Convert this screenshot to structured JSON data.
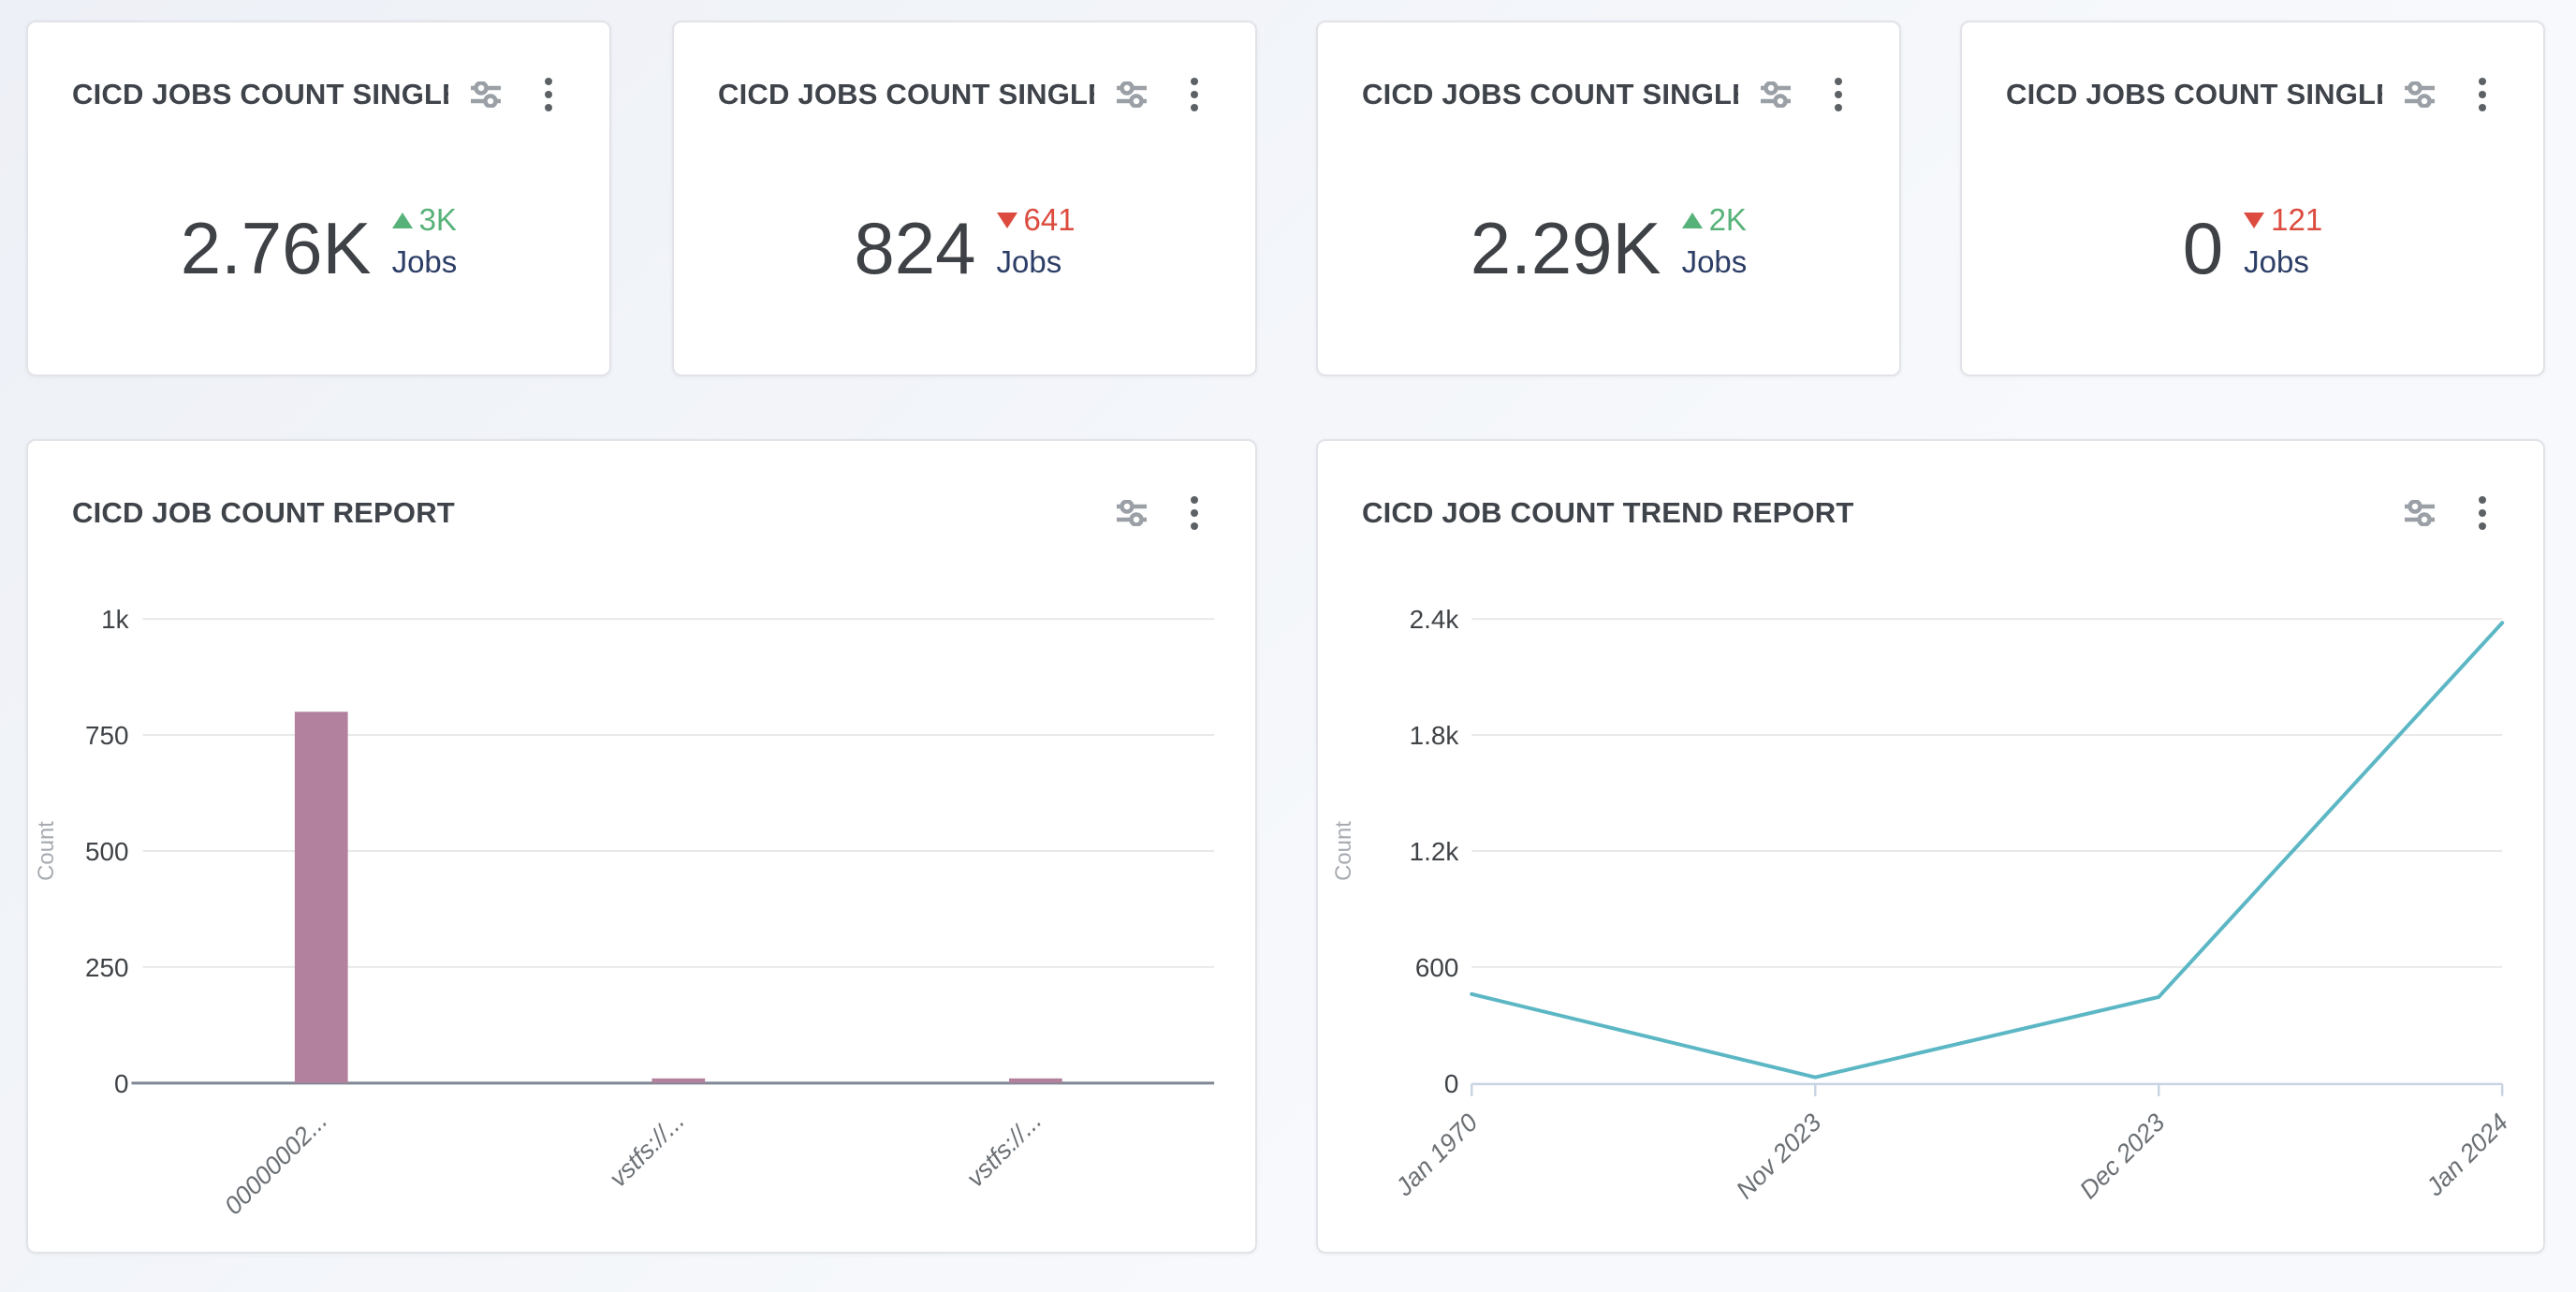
{
  "kpi_cards": [
    {
      "title": "CICD JOBS COUNT SINGLE S...",
      "value": "2.76K",
      "delta": "3K",
      "delta_direction": "up",
      "unit": "Jobs"
    },
    {
      "title": "CICD JOBS COUNT SINGLE S...",
      "value": "824",
      "delta": "641",
      "delta_direction": "down",
      "unit": "Jobs"
    },
    {
      "title": "CICD JOBS COUNT SINGLE S...",
      "value": "2.29K",
      "delta": "2K",
      "delta_direction": "up",
      "unit": "Jobs"
    },
    {
      "title": "CICD JOBS COUNT SINGLE S...",
      "value": "0",
      "delta": "121",
      "delta_direction": "down",
      "unit": "Jobs"
    }
  ],
  "icons": {
    "sliders": "filter-settings-icon",
    "kebab": "more-options-icon"
  },
  "colors": {
    "kpi_up_green": "#57b279",
    "kpi_down_red": "#dc4b3e",
    "kpi_unit_navy": "#2c3e66",
    "bar_fill": "#b2819d",
    "line_stroke": "#5cb7c5"
  },
  "chart_data": [
    {
      "type": "bar",
      "title": "CICD JOB COUNT REPORT",
      "categories": [
        "00000002...",
        "vstfs://...",
        "vstfs://..."
      ],
      "values": [
        800,
        10,
        10
      ],
      "xlabel": "",
      "ylabel": "Count",
      "ylim": [
        0,
        1000
      ],
      "yticks": [
        0,
        250,
        500,
        750,
        1000
      ],
      "ytick_labels": [
        "0",
        "250",
        "500",
        "750",
        "1k"
      ],
      "grid": true,
      "legend": "none",
      "bar_color": "#b2819d"
    },
    {
      "type": "line",
      "title": "CICD JOB COUNT TREND REPORT",
      "x": [
        "Jan 1970",
        "Nov 2023",
        "Dec 2023",
        "Jan 2024"
      ],
      "values": [
        460,
        30,
        445,
        2380
      ],
      "xlabel": "",
      "ylabel": "Count",
      "ylim": [
        0,
        2400
      ],
      "yticks": [
        0,
        600,
        1200,
        1800,
        2400
      ],
      "ytick_labels": [
        "0",
        "600",
        "1.2k",
        "1.8k",
        "2.4k"
      ],
      "grid": true,
      "legend": "none",
      "line_color": "#5cb7c5"
    }
  ]
}
